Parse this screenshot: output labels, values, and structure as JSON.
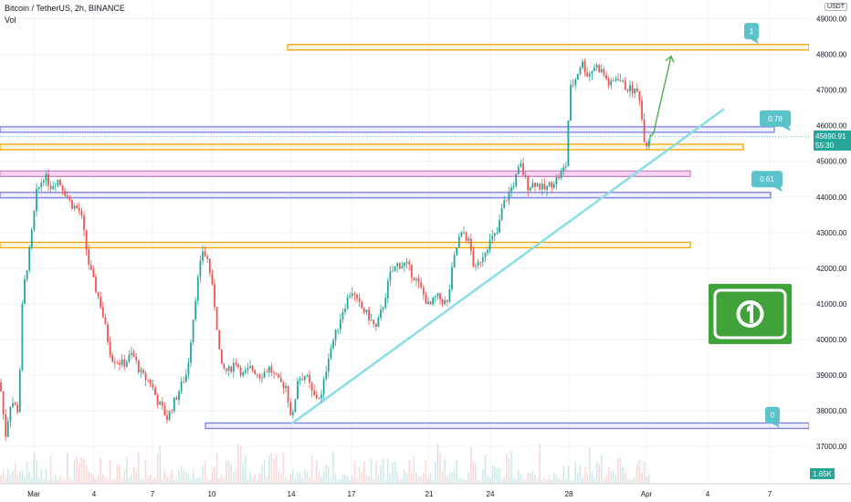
{
  "header": {
    "symbol": "Bitcoin / TetherUS, 2h, BINANCE",
    "indicator": "Vol"
  },
  "currency": "USDT",
  "price_tag": {
    "price": "45690.91",
    "countdown": "55:30"
  },
  "volume_tag": "1.65K",
  "colors": {
    "bull": "#26a69a",
    "bear": "#ef5350",
    "level_orange": "#f0a500",
    "level_purple": "#7b7fe0",
    "level_pink": "#f6d4f0",
    "trendline": "#89dde5",
    "arrow": "#4caf50",
    "label_teal": "#5bc3cc",
    "dollar_green": "#3fa33a",
    "price_tag": "#26a69a"
  },
  "icons": [
    "dollar-bill-icon",
    "arrow-up-icon"
  ],
  "chart_data": {
    "type": "candlestick",
    "ylim": [
      36500,
      49300
    ],
    "y_ticks": [
      "49000.00",
      "48000.00",
      "47000.00",
      "46000.00",
      "45000.00",
      "44000.00",
      "43000.00",
      "42000.00",
      "41000.00",
      "40000.00",
      "39000.00",
      "38000.00",
      "37000.00"
    ],
    "x_ticks": [
      "Mar",
      "4",
      "7",
      "10",
      "14",
      "17",
      "21",
      "24",
      "28",
      "Apr",
      "4",
      "7"
    ],
    "path": [
      [
        0,
        38800
      ],
      [
        6,
        37300
      ],
      [
        12,
        38300
      ],
      [
        20,
        38000
      ],
      [
        25,
        41300
      ],
      [
        33,
        42600
      ],
      [
        40,
        44100
      ],
      [
        48,
        44600
      ],
      [
        56,
        44300
      ],
      [
        63,
        44500
      ],
      [
        70,
        44200
      ],
      [
        78,
        43800
      ],
      [
        88,
        43600
      ],
      [
        98,
        42000
      ],
      [
        110,
        41000
      ],
      [
        122,
        39500
      ],
      [
        135,
        39300
      ],
      [
        145,
        39600
      ],
      [
        155,
        39000
      ],
      [
        165,
        38800
      ],
      [
        172,
        38300
      ],
      [
        183,
        37800
      ],
      [
        195,
        38500
      ],
      [
        205,
        39100
      ],
      [
        215,
        41400
      ],
      [
        222,
        42500
      ],
      [
        228,
        42200
      ],
      [
        236,
        40800
      ],
      [
        242,
        39200
      ],
      [
        250,
        39100
      ],
      [
        258,
        39400
      ],
      [
        266,
        39000
      ],
      [
        275,
        39200
      ],
      [
        285,
        39000
      ],
      [
        295,
        39200
      ],
      [
        305,
        38800
      ],
      [
        313,
        38700
      ],
      [
        320,
        37700
      ],
      [
        326,
        38900
      ],
      [
        335,
        39000
      ],
      [
        343,
        38400
      ],
      [
        352,
        38400
      ],
      [
        360,
        39600
      ],
      [
        368,
        40200
      ],
      [
        375,
        40800
      ],
      [
        385,
        41400
      ],
      [
        392,
        41000
      ],
      [
        402,
        40700
      ],
      [
        412,
        40300
      ],
      [
        420,
        41000
      ],
      [
        427,
        41800
      ],
      [
        435,
        42100
      ],
      [
        445,
        42100
      ],
      [
        455,
        41700
      ],
      [
        463,
        41300
      ],
      [
        470,
        40900
      ],
      [
        478,
        41200
      ],
      [
        490,
        41000
      ],
      [
        496,
        42100
      ],
      [
        502,
        42800
      ],
      [
        508,
        43000
      ],
      [
        514,
        42700
      ],
      [
        520,
        41900
      ],
      [
        527,
        42300
      ],
      [
        533,
        42600
      ],
      [
        538,
        42800
      ],
      [
        545,
        43000
      ],
      [
        550,
        43700
      ],
      [
        557,
        44100
      ],
      [
        563,
        44400
      ],
      [
        570,
        44900
      ],
      [
        578,
        44300
      ],
      [
        586,
        44400
      ],
      [
        596,
        44200
      ],
      [
        605,
        44400
      ],
      [
        613,
        44600
      ],
      [
        620,
        44900
      ],
      [
        624,
        47000
      ],
      [
        630,
        47300
      ],
      [
        637,
        47800
      ],
      [
        644,
        47400
      ],
      [
        652,
        47700
      ],
      [
        660,
        47500
      ],
      [
        668,
        47100
      ],
      [
        676,
        47400
      ],
      [
        684,
        47100
      ],
      [
        692,
        47000
      ],
      [
        700,
        46900
      ],
      [
        705,
        45700
      ],
      [
        708,
        45500
      ],
      [
        712,
        45690
      ]
    ],
    "levels": [
      {
        "price": 48200,
        "style": "orange",
        "x_start": 315,
        "x_end": 886
      },
      {
        "price": 45890,
        "style": "purple",
        "x_start": 0,
        "x_end": 848
      },
      {
        "price": 45400,
        "style": "orange",
        "x_start": 0,
        "x_end": 814
      },
      {
        "price": 44650,
        "style": "pink",
        "x_start": 0,
        "x_end": 756
      },
      {
        "price": 44050,
        "style": "purple",
        "x_start": 0,
        "x_end": 844
      },
      {
        "price": 42650,
        "style": "orange",
        "x_start": 0,
        "x_end": 756
      },
      {
        "price": 37580,
        "style": "purple",
        "x_start": 225,
        "x_end": 886
      }
    ],
    "fib_labels": [
      {
        "text": "1",
        "price": 48650,
        "x": 823
      },
      {
        "text": "0.78",
        "price": 46200,
        "x": 849
      },
      {
        "text": "0.61",
        "price": 44500,
        "x": 840
      },
      {
        "text": "0",
        "price": 37880,
        "x": 846
      }
    ],
    "trendline": {
      "from": [
        320,
        37650
      ],
      "to": [
        792,
        46450
      ]
    },
    "projection": {
      "from": [
        712,
        45690
      ],
      "to": [
        735,
        47950
      ]
    }
  }
}
